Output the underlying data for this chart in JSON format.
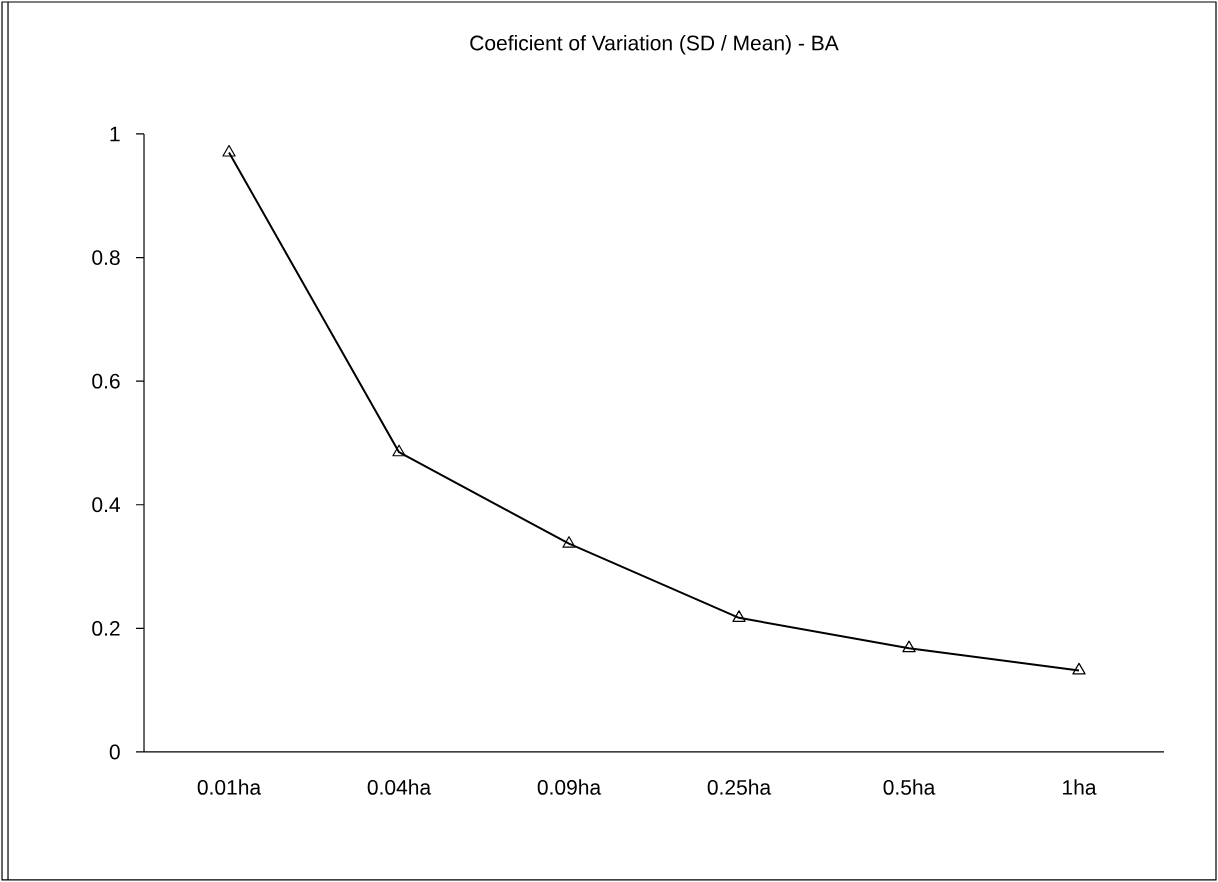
{
  "chart_data": {
    "type": "line",
    "title": "Coeficient of Variation (SD / Mean) - BA",
    "categories": [
      "0.01ha",
      "0.04ha",
      "0.09ha",
      "0.25ha",
      "0.5ha",
      "1ha"
    ],
    "values": [
      0.97,
      0.485,
      0.337,
      0.217,
      0.168,
      0.132
    ],
    "color": "#000000",
    "marker": "triangle",
    "line_style": "solid",
    "ylim": [
      0,
      1
    ],
    "yticks": [
      0,
      0.2,
      0.4,
      0.6,
      0.8,
      1
    ],
    "grid": false
  }
}
